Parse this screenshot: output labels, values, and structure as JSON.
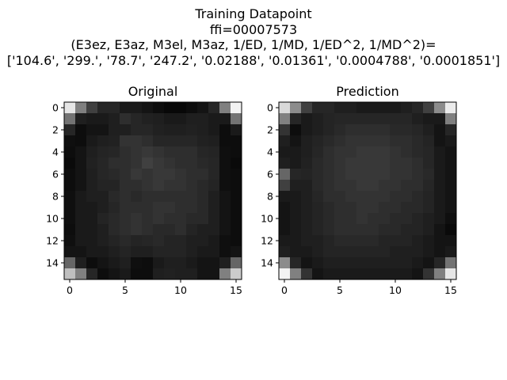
{
  "suptitle": {
    "line1": "Training Datapoint",
    "line2": "ffi=00007573",
    "line3": "(E3ez, E3az, M3el, M3az, 1/ED, 1/MD, 1/ED^2, 1/MD^2)=",
    "line4": "['104.6', '299.', '78.7', '247.2', '0.02188', '0.01361', '0.0004788', '0.0001851']"
  },
  "chart_data": [
    {
      "type": "heatmap",
      "title": "Original",
      "colormap": "gray",
      "value_range": [
        0,
        1
      ],
      "x_ticks": [
        0,
        5,
        10,
        15
      ],
      "y_ticks": [
        0,
        2,
        4,
        6,
        8,
        10,
        12,
        14
      ],
      "xlim": [
        -0.5,
        15.5
      ],
      "ylim": [
        15.5,
        -0.5
      ],
      "grid": false,
      "values": [
        [
          0.9,
          0.5,
          0.25,
          0.15,
          0.15,
          0.1,
          0.1,
          0.08,
          0.05,
          0.03,
          0.03,
          0.05,
          0.08,
          0.15,
          0.5,
          0.95
        ],
        [
          0.45,
          0.12,
          0.1,
          0.1,
          0.12,
          0.18,
          0.15,
          0.13,
          0.12,
          0.1,
          0.1,
          0.12,
          0.12,
          0.1,
          0.1,
          0.45
        ],
        [
          0.15,
          0.05,
          0.08,
          0.08,
          0.12,
          0.12,
          0.15,
          0.15,
          0.13,
          0.12,
          0.12,
          0.13,
          0.12,
          0.1,
          0.05,
          0.1
        ],
        [
          0.06,
          0.05,
          0.1,
          0.12,
          0.13,
          0.2,
          0.2,
          0.18,
          0.15,
          0.15,
          0.15,
          0.15,
          0.13,
          0.12,
          0.05,
          0.05
        ],
        [
          0.05,
          0.08,
          0.12,
          0.14,
          0.15,
          0.18,
          0.2,
          0.22,
          0.2,
          0.18,
          0.18,
          0.18,
          0.15,
          0.14,
          0.06,
          0.05
        ],
        [
          0.04,
          0.08,
          0.13,
          0.15,
          0.18,
          0.18,
          0.2,
          0.25,
          0.22,
          0.2,
          0.18,
          0.18,
          0.16,
          0.15,
          0.06,
          0.04
        ],
        [
          0.05,
          0.08,
          0.12,
          0.15,
          0.16,
          0.18,
          0.22,
          0.2,
          0.22,
          0.22,
          0.2,
          0.18,
          0.18,
          0.15,
          0.06,
          0.05
        ],
        [
          0.05,
          0.08,
          0.12,
          0.14,
          0.14,
          0.18,
          0.18,
          0.2,
          0.22,
          0.2,
          0.2,
          0.18,
          0.16,
          0.14,
          0.06,
          0.05
        ],
        [
          0.06,
          0.1,
          0.12,
          0.12,
          0.16,
          0.18,
          0.16,
          0.18,
          0.18,
          0.18,
          0.18,
          0.18,
          0.16,
          0.12,
          0.08,
          0.05
        ],
        [
          0.06,
          0.1,
          0.1,
          0.12,
          0.15,
          0.18,
          0.18,
          0.18,
          0.2,
          0.2,
          0.18,
          0.18,
          0.16,
          0.12,
          0.08,
          0.05
        ],
        [
          0.06,
          0.1,
          0.1,
          0.14,
          0.16,
          0.18,
          0.2,
          0.18,
          0.2,
          0.18,
          0.18,
          0.16,
          0.16,
          0.12,
          0.08,
          0.05
        ],
        [
          0.05,
          0.1,
          0.1,
          0.12,
          0.16,
          0.18,
          0.2,
          0.18,
          0.16,
          0.16,
          0.18,
          0.14,
          0.12,
          0.12,
          0.08,
          0.05
        ],
        [
          0.06,
          0.1,
          0.1,
          0.12,
          0.14,
          0.16,
          0.14,
          0.15,
          0.16,
          0.14,
          0.14,
          0.12,
          0.12,
          0.1,
          0.06,
          0.05
        ],
        [
          0.08,
          0.08,
          0.1,
          0.1,
          0.12,
          0.14,
          0.12,
          0.12,
          0.14,
          0.14,
          0.14,
          0.12,
          0.1,
          0.1,
          0.06,
          0.08
        ],
        [
          0.4,
          0.12,
          0.05,
          0.08,
          0.1,
          0.12,
          0.06,
          0.05,
          0.1,
          0.12,
          0.12,
          0.1,
          0.08,
          0.08,
          0.12,
          0.4
        ],
        [
          0.75,
          0.5,
          0.15,
          0.05,
          0.08,
          0.1,
          0.05,
          0.05,
          0.12,
          0.13,
          0.12,
          0.12,
          0.08,
          0.08,
          0.5,
          0.8
        ]
      ]
    },
    {
      "type": "heatmap",
      "title": "Prediction",
      "colormap": "gray",
      "value_range": [
        0,
        1
      ],
      "x_ticks": [
        0,
        5,
        10,
        15
      ],
      "y_ticks": [
        0,
        2,
        4,
        6,
        8,
        10,
        12,
        14
      ],
      "xlim": [
        -0.5,
        15.5
      ],
      "ylim": [
        15.5,
        -0.5
      ],
      "grid": false,
      "values": [
        [
          0.85,
          0.55,
          0.25,
          0.15,
          0.15,
          0.12,
          0.12,
          0.1,
          0.1,
          0.1,
          0.1,
          0.12,
          0.15,
          0.25,
          0.55,
          0.92
        ],
        [
          0.5,
          0.15,
          0.1,
          0.12,
          0.14,
          0.15,
          0.15,
          0.15,
          0.15,
          0.15,
          0.15,
          0.15,
          0.12,
          0.1,
          0.1,
          0.5
        ],
        [
          0.2,
          0.05,
          0.1,
          0.12,
          0.14,
          0.16,
          0.18,
          0.18,
          0.18,
          0.18,
          0.16,
          0.16,
          0.15,
          0.12,
          0.08,
          0.15
        ],
        [
          0.12,
          0.08,
          0.12,
          0.14,
          0.16,
          0.18,
          0.2,
          0.2,
          0.2,
          0.2,
          0.18,
          0.18,
          0.16,
          0.14,
          0.08,
          0.1
        ],
        [
          0.1,
          0.1,
          0.12,
          0.15,
          0.18,
          0.2,
          0.2,
          0.22,
          0.22,
          0.22,
          0.2,
          0.18,
          0.16,
          0.15,
          0.1,
          0.08
        ],
        [
          0.12,
          0.1,
          0.13,
          0.16,
          0.18,
          0.2,
          0.22,
          0.22,
          0.22,
          0.22,
          0.2,
          0.2,
          0.18,
          0.15,
          0.1,
          0.08
        ],
        [
          0.4,
          0.15,
          0.14,
          0.16,
          0.18,
          0.2,
          0.22,
          0.22,
          0.22,
          0.22,
          0.2,
          0.2,
          0.18,
          0.16,
          0.1,
          0.08
        ],
        [
          0.25,
          0.12,
          0.12,
          0.16,
          0.18,
          0.2,
          0.2,
          0.22,
          0.22,
          0.2,
          0.2,
          0.18,
          0.18,
          0.15,
          0.1,
          0.08
        ],
        [
          0.1,
          0.1,
          0.12,
          0.15,
          0.18,
          0.18,
          0.2,
          0.2,
          0.2,
          0.2,
          0.18,
          0.18,
          0.16,
          0.14,
          0.1,
          0.08
        ],
        [
          0.08,
          0.1,
          0.12,
          0.14,
          0.16,
          0.18,
          0.18,
          0.2,
          0.2,
          0.18,
          0.18,
          0.16,
          0.16,
          0.14,
          0.1,
          0.08
        ],
        [
          0.08,
          0.1,
          0.12,
          0.14,
          0.16,
          0.18,
          0.18,
          0.2,
          0.18,
          0.18,
          0.16,
          0.16,
          0.14,
          0.12,
          0.1,
          0.06
        ],
        [
          0.08,
          0.1,
          0.12,
          0.14,
          0.16,
          0.18,
          0.18,
          0.18,
          0.18,
          0.16,
          0.16,
          0.14,
          0.14,
          0.12,
          0.08,
          0.04
        ],
        [
          0.1,
          0.1,
          0.12,
          0.12,
          0.14,
          0.16,
          0.16,
          0.16,
          0.16,
          0.14,
          0.14,
          0.14,
          0.12,
          0.1,
          0.08,
          0.08
        ],
        [
          0.12,
          0.1,
          0.1,
          0.12,
          0.14,
          0.14,
          0.14,
          0.14,
          0.14,
          0.14,
          0.12,
          0.12,
          0.12,
          0.1,
          0.08,
          0.1
        ],
        [
          0.55,
          0.15,
          0.08,
          0.1,
          0.12,
          0.12,
          0.12,
          0.12,
          0.12,
          0.12,
          0.12,
          0.12,
          0.1,
          0.08,
          0.15,
          0.45
        ],
        [
          0.95,
          0.5,
          0.2,
          0.08,
          0.1,
          0.1,
          0.1,
          0.1,
          0.1,
          0.1,
          0.1,
          0.1,
          0.08,
          0.2,
          0.5,
          0.9
        ]
      ]
    }
  ]
}
